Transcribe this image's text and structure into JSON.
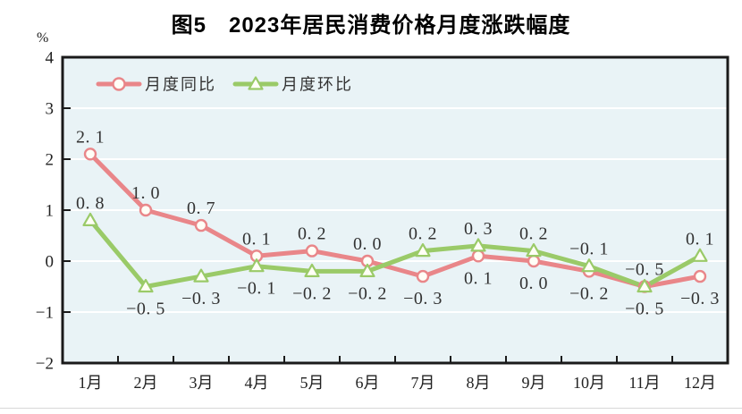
{
  "chart_data": {
    "type": "line",
    "title": "图5　2023年居民消费价格月度涨跌幅度",
    "unit": "%",
    "xlabel": "",
    "ylabel": "%",
    "ylim": [
      -2,
      4
    ],
    "ytick_interval": 1,
    "yticks": [
      "4",
      "3",
      "2",
      "1",
      "0",
      "−1",
      "−2"
    ],
    "categories": [
      "1月",
      "2月",
      "3月",
      "4月",
      "5月",
      "6月",
      "7月",
      "8月",
      "9月",
      "10月",
      "11月",
      "12月"
    ],
    "series": [
      {
        "name": "月度同比",
        "marker": "circle",
        "color": "#e98689",
        "values": [
          2.1,
          1.0,
          0.7,
          0.1,
          0.2,
          0.0,
          -0.3,
          0.1,
          0.0,
          -0.2,
          -0.5,
          -0.3
        ],
        "labels": [
          "2. 1",
          "1. 0",
          "0. 7",
          "0. 1",
          "0. 2",
          "0. 0",
          "−0. 3",
          "0. 1",
          "0. 0",
          "−0. 2",
          "−0. 5",
          "−0. 3"
        ],
        "label_pos": [
          "above",
          "above",
          "above",
          "above",
          "above",
          "above",
          "below",
          "below",
          "below",
          "below",
          "below",
          "below"
        ]
      },
      {
        "name": "月度环比",
        "marker": "triangle",
        "color": "#9aca68",
        "values": [
          0.8,
          -0.5,
          -0.3,
          -0.1,
          -0.2,
          -0.2,
          0.2,
          0.3,
          0.2,
          -0.1,
          -0.5,
          0.1
        ],
        "labels": [
          "0. 8",
          "−0. 5",
          "−0. 3",
          "−0. 1",
          "−0. 2",
          "−0. 2",
          "0. 2",
          "0. 3",
          "0. 2",
          "−0. 1",
          "−0. 5",
          "0. 1"
        ],
        "label_pos": [
          "above",
          "below",
          "below",
          "below",
          "below",
          "below",
          "above",
          "above",
          "above",
          "above",
          "above",
          "above"
        ]
      }
    ],
    "grid": true,
    "gridline_color": "#ffffff",
    "plot_bg": "#e9f3f6",
    "border_color": "#1a1a1a",
    "marker_fill": "#fffef6",
    "label_color": "#333333",
    "legend_position": "top-left"
  }
}
